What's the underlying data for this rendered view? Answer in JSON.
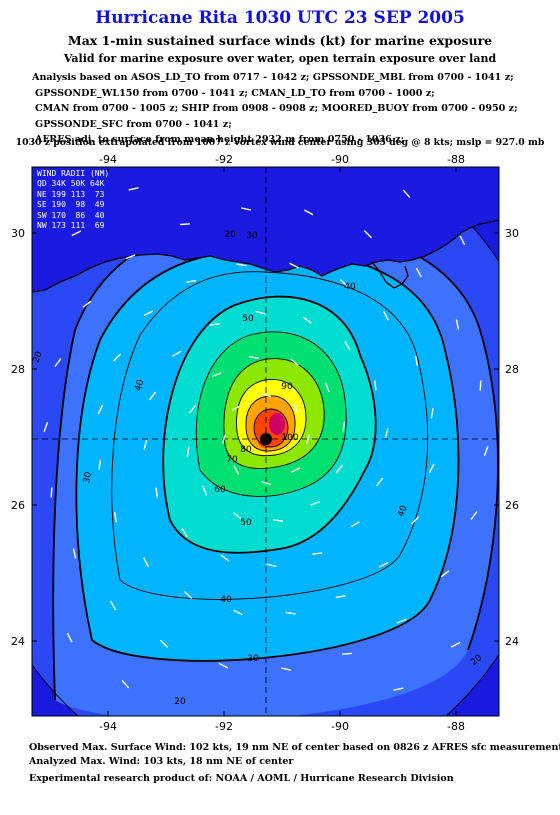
{
  "header": {
    "title": "Hurricane Rita 1030 UTC 23 SEP 2005",
    "subtitle": "Max 1-min sustained surface winds (kt) for marine exposure",
    "subtitle2": "Valid for marine exposure over water, open terrain exposure over land"
  },
  "analysis_lines": [
    "Analysis based on  ASOS_LD_TO from 0717 - 1042 z;  GPSSONDE_MBL from 0700 - 1041 z;",
    "GPSSONDE_WL150 from 0700 - 1041 z;  CMAN_LD_TO from 0700 - 1000 z;",
    "CMAN from 0700 - 1005 z;  SHIP from 0908 - 0908 z;  MOORED_BUOY from 0700 - 0950 z;",
    "GPSSONDE_SFC from 0700 - 1041 z;",
    "AFRES adj. to surface from mean height 2932 m from 0750 - 1036 z;"
  ],
  "position_note": "1030 z position extrapolated from 1007 z Vortex wind center using 305 deg @ 8 kts; mslp = 927.0 mb",
  "wind_radii": {
    "title": "WIND RADII (NM)",
    "header": "QD 34K 50K 64K",
    "rows": [
      "NE 199 113  73",
      "SE 190  98  49",
      "SW 170  86  40",
      "NW 173 111  69"
    ]
  },
  "axes": {
    "lon_ticks": [
      "-94",
      "-92",
      "-90",
      "-88"
    ],
    "lat_ticks": [
      "30",
      "28",
      "26",
      "24"
    ]
  },
  "contour_labels": [
    "20",
    "30",
    "40",
    "50",
    "60",
    "70",
    "80",
    "90",
    "100"
  ],
  "center": {
    "lon": -91.2,
    "lat": 26.9
  },
  "colors": {
    "c0": "#1a1ae0",
    "c20": "#2a48f4",
    "c30": "#3d72ff",
    "c40": "#00b4ff",
    "c50": "#00ddd0",
    "c60": "#00e070",
    "c70": "#8ce800",
    "c80": "#ffff00",
    "c90": "#ffa400",
    "c100": "#ff4400",
    "c110": "#cc0066"
  },
  "footer": {
    "line1": "Observed Max. Surface Wind: 102 kts, 19 nm NE of center based on 0826 z AFRES sfc measurement",
    "line2": "Analyzed Max. Wind: 103 kts, 18 nm NE of center",
    "line3": "Experimental research product of:  NOAA / AOML / Hurricane Research Division"
  }
}
